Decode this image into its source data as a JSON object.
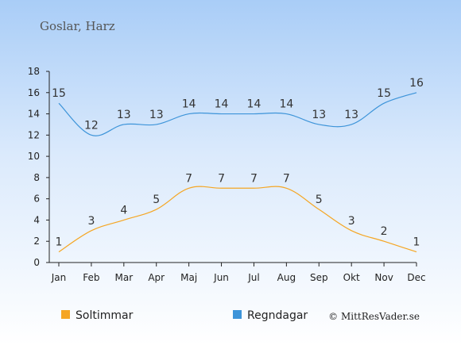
{
  "chart_data": {
    "type": "line",
    "title": "Goslar, Harz",
    "categories": [
      "Jan",
      "Feb",
      "Mar",
      "Apr",
      "Maj",
      "Jun",
      "Jul",
      "Aug",
      "Sep",
      "Okt",
      "Nov",
      "Dec"
    ],
    "series": [
      {
        "name": "Soltimmar",
        "color": "#f5a623",
        "values": [
          1,
          3,
          4,
          5,
          7,
          7,
          7,
          7,
          5,
          3,
          2,
          1
        ]
      },
      {
        "name": "Regndagar",
        "color": "#3d94d9",
        "values": [
          15,
          12,
          13,
          13,
          14,
          14,
          14,
          14,
          13,
          13,
          15,
          16
        ]
      }
    ],
    "yticks": [
      0,
      2,
      4,
      6,
      8,
      10,
      12,
      14,
      16,
      18
    ],
    "ylim": [
      0,
      18
    ],
    "grid": false,
    "legend_position": "bottom-left",
    "copyright": "© MittResVader.se"
  }
}
